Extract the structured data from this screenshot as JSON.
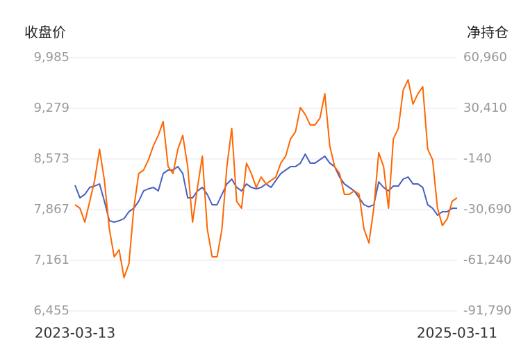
{
  "chart_data": {
    "type": "line",
    "y_label": "收盘价",
    "y2_label": "净持仓",
    "categories": [
      "2023-03-13",
      null,
      null,
      null,
      null,
      null,
      null,
      null,
      null,
      null,
      null,
      null,
      null,
      null,
      null,
      null,
      null,
      null,
      null,
      null,
      null,
      null,
      null,
      null,
      null,
      null,
      null,
      null,
      null,
      null,
      null,
      null,
      null,
      null,
      null,
      null,
      null,
      null,
      null,
      null,
      null,
      null,
      null,
      null,
      null,
      null,
      null,
      null,
      null,
      null,
      null,
      null,
      null,
      null,
      null,
      null,
      null,
      null,
      null,
      null,
      null,
      null,
      null,
      null,
      null,
      null,
      null,
      null,
      null,
      null,
      null,
      null,
      null,
      null,
      null,
      null,
      null,
      null,
      "2025-03-11"
    ],
    "series": [
      {
        "color": "#4a5fc1",
        "axis": "y",
        "values": [
          8206,
          8031,
          8080,
          8176,
          8196,
          8225,
          7983,
          7712,
          7693,
          7712,
          7741,
          7838,
          7886,
          7983,
          8128,
          8157,
          8176,
          8128,
          8370,
          8418,
          8418,
          8467,
          8370,
          8031,
          8031,
          8128,
          8176,
          8080,
          7935,
          7935,
          8080,
          8225,
          8293,
          8176,
          8128,
          8225,
          8176,
          8157,
          8176,
          8225,
          8176,
          8273,
          8370,
          8418,
          8467,
          8467,
          8515,
          8641,
          8515,
          8515,
          8563,
          8612,
          8515,
          8467,
          8322,
          8225,
          8176,
          8128,
          8031,
          7935,
          7906,
          7935,
          8254,
          8176,
          8128,
          8196,
          8196,
          8293,
          8322,
          8225,
          8225,
          8176,
          7935,
          7886,
          7790,
          7838,
          7838,
          7886,
          7886
        ]
      },
      {
        "color": "#ff6600",
        "axis": "y2",
        "values": [
          -27762,
          -29855,
          -38225,
          -25670,
          -13115,
          5718,
          -13115,
          -42410,
          -59150,
          -54965,
          -71705,
          -63335,
          -29855,
          -8930,
          -6837,
          -560,
          7810,
          14088,
          22458,
          -4745,
          -8930,
          5718,
          14088,
          -4745,
          -38225,
          -17300,
          1533,
          -42410,
          -59150,
          -59150,
          -42410,
          -4745,
          18273,
          -25670,
          -29855,
          -2652,
          -8930,
          -17300,
          -11022,
          -15207,
          -13115,
          -11022,
          -2652,
          1533,
          11995,
          16180,
          30828,
          26643,
          20365,
          20365,
          24550,
          39198,
          7810,
          -4745,
          -8930,
          -21485,
          -21485,
          -19392,
          -21485,
          -42410,
          -50780,
          -29855,
          3625,
          -4745,
          -29855,
          11995,
          18273,
          41290,
          47568,
          32920,
          39198,
          43383,
          5718,
          -560,
          -29855,
          -40317,
          -36132,
          -25670,
          -23577
        ]
      }
    ],
    "ylim": [
      6455,
      9985
    ],
    "yticks": [
      {
        "value": 6455,
        "label": "6,455"
      },
      {
        "value": 7161,
        "label": "7,161"
      },
      {
        "value": 7867,
        "label": "7,867"
      },
      {
        "value": 8573,
        "label": "8,573"
      },
      {
        "value": 9279,
        "label": "9,279"
      },
      {
        "value": 9985,
        "label": "9,985"
      }
    ],
    "y2lim": [
      -91790,
      60960
    ],
    "y2ticks": [
      {
        "value": -91790,
        "label": "-91,790"
      },
      {
        "value": -61240,
        "label": "-61,240"
      },
      {
        "value": -30690,
        "label": "-30,690"
      },
      {
        "value": -140,
        "label": "-140"
      },
      {
        "value": 30410,
        "label": "30,410"
      },
      {
        "value": 60960,
        "label": "60,960"
      }
    ],
    "grid": true
  }
}
